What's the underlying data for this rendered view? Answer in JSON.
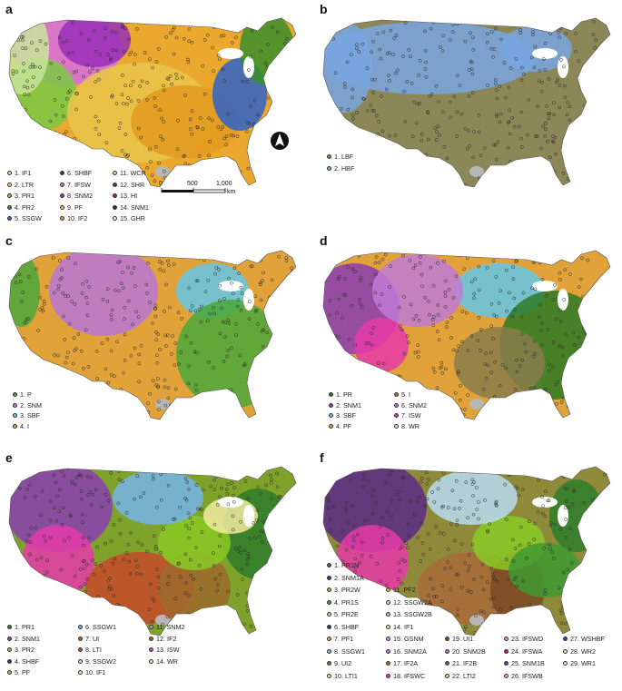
{
  "panels": [
    {
      "letter": "a",
      "legend_columns": [
        [
          {
            "label": "1. IF1",
            "color": "#c9e49a"
          },
          {
            "label": "2. LTR",
            "color": "#ffd23c"
          },
          {
            "label": "3. PR1",
            "color": "#7ac943"
          },
          {
            "label": "4. PR2",
            "color": "#3a8f2a"
          },
          {
            "label": "5. SSGW",
            "color": "#2f64c8"
          }
        ],
        [
          {
            "label": "6. SHBF",
            "color": "#1c3e8a"
          },
          {
            "label": "7. IFSW",
            "color": "#d66fe0"
          },
          {
            "label": "8. SNM2",
            "color": "#9a2fb8"
          },
          {
            "label": "9. PF",
            "color": "#e9c64b"
          },
          {
            "label": "10. IF2",
            "color": "#e39a1f"
          }
        ],
        [
          {
            "label": "11. WCR",
            "color": "#f2d77b"
          },
          {
            "label": "12. SHR",
            "color": "#5b2a86"
          },
          {
            "label": "13. HI",
            "color": "#b0182f"
          },
          {
            "label": "14. SNM1",
            "color": "#2a2a2a"
          },
          {
            "label": "15. GHR",
            "color": "#f7f1c9"
          }
        ]
      ],
      "scale_labels": [
        "0",
        "500",
        "1,000"
      ],
      "scale_unit": "km"
    },
    {
      "letter": "b",
      "legend_columns": [
        [
          {
            "label": "1. LBF",
            "color": "#8c8757"
          },
          {
            "label": "2. HBF",
            "color": "#78a6e0"
          }
        ]
      ]
    },
    {
      "letter": "c",
      "legend_columns": [
        [
          {
            "label": "1. P",
            "color": "#4aa83a"
          },
          {
            "label": "2. SNM",
            "color": "#b877d8"
          },
          {
            "label": "3. SBF",
            "color": "#64c7e6"
          },
          {
            "label": "4. I",
            "color": "#e2a23a"
          }
        ]
      ]
    },
    {
      "letter": "d",
      "legend_columns": [
        [
          {
            "label": "1. PR",
            "color": "#2d7a26"
          },
          {
            "label": "2. SNM1",
            "color": "#8a3eb2"
          },
          {
            "label": "3. SBF",
            "color": "#64c7e6"
          },
          {
            "label": "4. PF",
            "color": "#e2a23a"
          }
        ],
        [
          {
            "label": "5. I",
            "color": "#8a7d4a"
          },
          {
            "label": "6. SNM2",
            "color": "#c07ad6"
          },
          {
            "label": "7. ISW",
            "color": "#e63aa9"
          },
          {
            "label": "8. WR",
            "color": "#f3e3b0"
          }
        ]
      ]
    },
    {
      "letter": "e",
      "legend_columns": [
        [
          {
            "label": "1. PR1",
            "color": "#2e7d2a"
          },
          {
            "label": "2. SNM1",
            "color": "#8a3eb2"
          },
          {
            "label": "3. PR2",
            "color": "#8ac926"
          },
          {
            "label": "4. SHBF",
            "color": "#1c3e8a"
          },
          {
            "label": "5. PF",
            "color": "#e2a23a"
          }
        ],
        [
          {
            "label": "6. SSGW1",
            "color": "#74b5e8"
          },
          {
            "label": "7. UI",
            "color": "#9c6a2b"
          },
          {
            "label": "8. LTI",
            "color": "#c74a2a"
          },
          {
            "label": "9. SSGW2",
            "color": "#b8dbf2"
          },
          {
            "label": "10. IF1",
            "color": "#f2eaa0"
          }
        ],
        [
          {
            "label": "11. SNM2",
            "color": "#d68fe0"
          },
          {
            "label": "12. IF2",
            "color": "#a86a3a"
          },
          {
            "label": "13. ISW",
            "color": "#e63aa9"
          },
          {
            "label": "14. WR",
            "color": "#f3e3b0"
          }
        ]
      ]
    },
    {
      "letter": "f",
      "legend_columns": [
        [
          {
            "label": "1. PR1N",
            "color": "#2e7d2a"
          },
          {
            "label": "2. SNM1A",
            "color": "#5b2a86"
          },
          {
            "label": "3. PR2W",
            "color": "#8ac926"
          },
          {
            "label": "4. PR1S",
            "color": "#3f9a33"
          },
          {
            "label": "5. PR2E",
            "color": "#b6e07a"
          },
          {
            "label": "6. SHBF",
            "color": "#1c3e8a"
          },
          {
            "label": "7. PF1",
            "color": "#e2a23a"
          },
          {
            "label": "8. SSGW1",
            "color": "#74b5e8"
          },
          {
            "label": "9. UI2",
            "color": "#9c6a2b"
          },
          {
            "label": "10. LTI1",
            "color": "#f1e06a"
          }
        ],
        [
          {
            "label": "11. PF2",
            "color": "#d9b35a"
          },
          {
            "label": "12. SSGW2A",
            "color": "#b8dbf2"
          },
          {
            "label": "13. SSGW2B",
            "color": "#9ecae1"
          },
          {
            "label": "14. IF1",
            "color": "#f2eaa0"
          },
          {
            "label": "15. GSNM",
            "color": "#d68fe0"
          },
          {
            "label": "16. SNM2A",
            "color": "#c07ad6"
          },
          {
            "label": "17. IF2A",
            "color": "#a86a3a"
          },
          {
            "label": "18. IFSWC",
            "color": "#e63aa9"
          }
        ],
        [
          {
            "label": "19. UI1",
            "color": "#7a4a22"
          },
          {
            "label": "20. SNM2B",
            "color": "#b56ad0"
          },
          {
            "label": "21. IF2B",
            "color": "#8a5a2a"
          },
          {
            "label": "22. LTI2",
            "color": "#eed45c"
          }
        ],
        [
          {
            "label": "23. IFSWD",
            "color": "#f08ad0"
          },
          {
            "label": "24. IFSWA",
            "color": "#c2187a"
          },
          {
            "label": "25. SNM1B",
            "color": "#6a3aa8"
          },
          {
            "label": "26. IFSWB",
            "color": "#e9a0d8"
          }
        ],
        [
          {
            "label": "27. WSHBF",
            "color": "#2a4a9a"
          },
          {
            "label": "28. WR2",
            "color": "#f3e3b0"
          },
          {
            "label": "29. WR1",
            "color": "#f7efcf"
          }
        ]
      ]
    }
  ]
}
